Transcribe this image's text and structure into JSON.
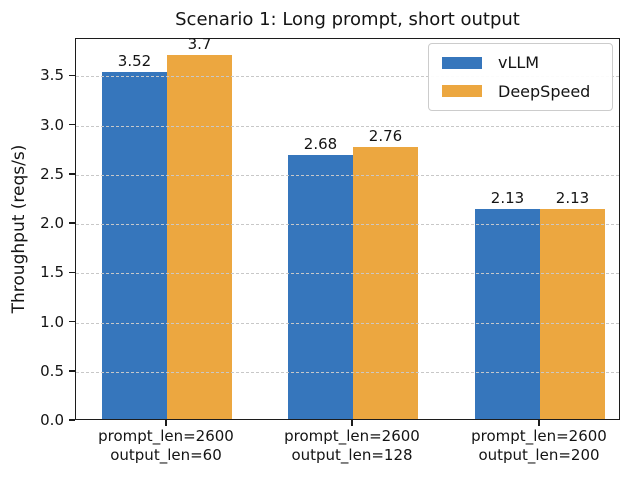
{
  "chart_data": {
    "type": "bar",
    "title": "Scenario 1: Long prompt, short output",
    "xlabel": "",
    "ylabel": "Throughput (reqs/s)",
    "categories": [
      [
        "prompt_len=2600",
        "output_len=60"
      ],
      [
        "prompt_len=2600",
        "output_len=128"
      ],
      [
        "prompt_len=2600",
        "output_len=200"
      ]
    ],
    "series": [
      {
        "name": "vLLM",
        "color": "#3676BC",
        "values": [
          3.52,
          2.68,
          2.13
        ]
      },
      {
        "name": "DeepSpeed",
        "color": "#ECA740",
        "values": [
          3.7,
          2.76,
          2.13
        ]
      }
    ],
    "value_labels": [
      [
        "3.52",
        "2.68",
        "2.13"
      ],
      [
        "3.7",
        "2.76",
        "2.13"
      ]
    ],
    "ylim": [
      0,
      3.88
    ],
    "yticks": [
      "0.0",
      "0.5",
      "1.0",
      "1.5",
      "2.0",
      "2.5",
      "3.0",
      "3.5"
    ],
    "grid": {
      "axis": "y",
      "style": "dashed",
      "color": "#c8c8c8",
      "above_bars": true
    },
    "legend": {
      "position": "upper right"
    }
  }
}
